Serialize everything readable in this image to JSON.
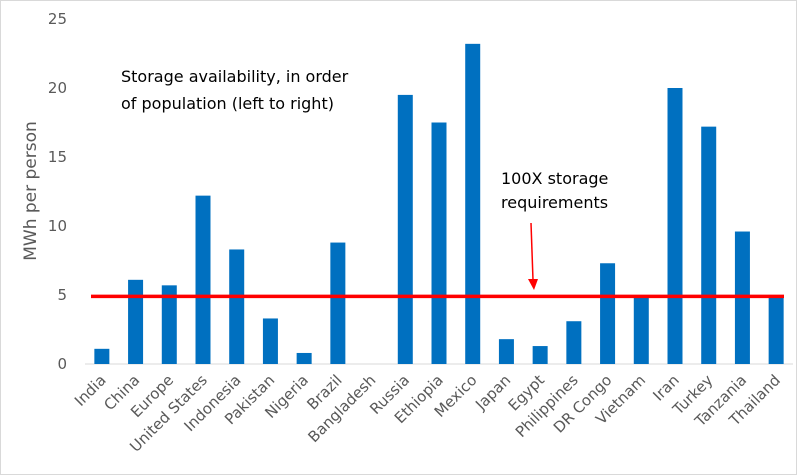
{
  "chart_data": {
    "type": "bar",
    "title": "",
    "xlabel": "",
    "ylabel": "MWh per person",
    "ylim": [
      0,
      25
    ],
    "yticks": [
      0,
      5,
      10,
      15,
      20,
      25
    ],
    "grid": false,
    "legend": "none",
    "categories": [
      "India",
      "China",
      "Europe",
      "United States",
      "Indonesia",
      "Pakistan",
      "Nigeria",
      "Brazil",
      "Bangladesh",
      "Russia",
      "Ethiopia",
      "Mexico",
      "Japan",
      "Egypt",
      "Philippines",
      "DR Congo",
      "Vietnam",
      "Iran",
      "Turkey",
      "Tanzania",
      "Thailand"
    ],
    "values": [
      1.1,
      6.1,
      5.7,
      12.2,
      8.3,
      3.3,
      0.8,
      8.8,
      0,
      19.5,
      17.5,
      23.2,
      1.8,
      1.3,
      3.1,
      7.3,
      4.9,
      20.0,
      17.2,
      9.6,
      4.9
    ],
    "bar_color": "#0070C0",
    "reference_line": {
      "value": 4.9,
      "color": "#FF0000"
    },
    "annotations": {
      "storage_line1": "Storage availability, in order",
      "storage_line2": "of population (left to right)",
      "req_line1": "100X storage",
      "req_line2": "requirements"
    }
  }
}
